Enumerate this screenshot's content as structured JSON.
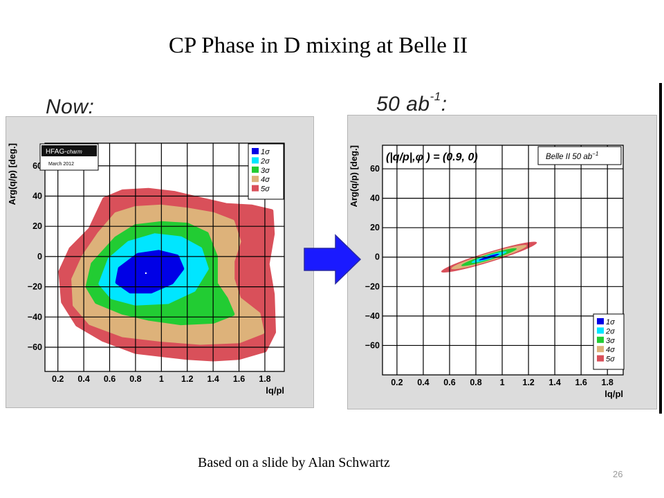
{
  "slide": {
    "title": "CP Phase in D mixing at Belle II",
    "footer": "Based on a slide by Alan Schwartz",
    "page_number": "26"
  },
  "arrow": {
    "color": "#1a1aff"
  },
  "chart_data": [
    {
      "type": "contour",
      "heading": "Now:",
      "xlabel": "lq/pl",
      "ylabel": "Arg(q/p) [deg.]",
      "xlim": [
        0.1,
        1.95
      ],
      "ylim": [
        -76,
        75
      ],
      "xticks": [
        "0.2",
        "0.4",
        "0.6",
        "0.8",
        "1",
        "1.2",
        "1.4",
        "1.6",
        "1.8"
      ],
      "yticks": [
        "60",
        "40",
        "20",
        "0",
        "−20",
        "−40",
        "−60"
      ],
      "grid": true,
      "badge": {
        "line1": "HFAG-",
        "line1_italic": "charm",
        "line2": "March 2012"
      },
      "legend": {
        "placement": "top-right",
        "entries": [
          "1σ",
          "2σ",
          "3σ",
          "4σ",
          "5σ"
        ],
        "colors": [
          "#0000e6",
          "#00e6ff",
          "#22cc33",
          "#ddb27a",
          "#d9505a"
        ]
      },
      "best_fit": {
        "x": 0.88,
        "y": -11
      },
      "contours": [
        {
          "level": "5σ",
          "points": [
            [
              0.56,
              38
            ],
            [
              0.7,
              43
            ],
            [
              0.9,
              44
            ],
            [
              1.1,
              42
            ],
            [
              1.3,
              38
            ],
            [
              1.5,
              34
            ],
            [
              1.7,
              33
            ],
            [
              1.85,
              30
            ],
            [
              1.86,
              15
            ],
            [
              1.82,
              -5
            ],
            [
              1.86,
              -25
            ],
            [
              1.87,
              -50
            ],
            [
              1.8,
              -62
            ],
            [
              1.6,
              -67
            ],
            [
              1.4,
              -68
            ],
            [
              1.2,
              -67
            ],
            [
              1.0,
              -65
            ],
            [
              0.8,
              -63
            ],
            [
              0.55,
              -55
            ],
            [
              0.35,
              -45
            ],
            [
              0.24,
              -30
            ],
            [
              0.22,
              -10
            ],
            [
              0.3,
              5
            ],
            [
              0.45,
              18
            ]
          ]
        },
        {
          "level": "4σ",
          "points": [
            [
              0.65,
              28
            ],
            [
              0.8,
              32
            ],
            [
              1.0,
              33
            ],
            [
              1.2,
              31
            ],
            [
              1.4,
              28
            ],
            [
              1.55,
              23
            ],
            [
              1.6,
              10
            ],
            [
              1.55,
              -3
            ],
            [
              1.55,
              -15
            ],
            [
              1.6,
              -28
            ],
            [
              1.75,
              -38
            ],
            [
              1.78,
              -50
            ],
            [
              1.6,
              -56
            ],
            [
              1.3,
              -57
            ],
            [
              1.0,
              -55
            ],
            [
              0.7,
              -52
            ],
            [
              0.45,
              -44
            ],
            [
              0.33,
              -32
            ],
            [
              0.32,
              -15
            ],
            [
              0.4,
              0
            ],
            [
              0.52,
              15
            ]
          ]
        },
        {
          "level": "3σ",
          "points": [
            [
              0.65,
              12
            ],
            [
              0.8,
              20
            ],
            [
              1.0,
              22
            ],
            [
              1.2,
              21
            ],
            [
              1.35,
              15
            ],
            [
              1.42,
              0
            ],
            [
              1.42,
              -18
            ],
            [
              1.5,
              -28
            ],
            [
              1.55,
              -38
            ],
            [
              1.4,
              -43
            ],
            [
              1.15,
              -44
            ],
            [
              0.9,
              -41
            ],
            [
              0.7,
              -37
            ],
            [
              0.5,
              -30
            ],
            [
              0.43,
              -20
            ],
            [
              0.47,
              -5
            ]
          ]
        },
        {
          "level": "2σ",
          "points": [
            [
              0.6,
              -2
            ],
            [
              0.75,
              9
            ],
            [
              0.95,
              14
            ],
            [
              1.15,
              12
            ],
            [
              1.3,
              5
            ],
            [
              1.35,
              -8
            ],
            [
              1.25,
              -22
            ],
            [
              1.05,
              -30
            ],
            [
              0.8,
              -31
            ],
            [
              0.62,
              -27
            ],
            [
              0.53,
              -18
            ]
          ]
        },
        {
          "level": "1σ",
          "points": [
            [
              0.68,
              -8
            ],
            [
              0.82,
              1
            ],
            [
              0.98,
              3
            ],
            [
              1.12,
              0
            ],
            [
              1.16,
              -8
            ],
            [
              1.08,
              -17
            ],
            [
              0.92,
              -23
            ],
            [
              0.76,
              -23
            ],
            [
              0.66,
              -17
            ]
          ]
        }
      ]
    },
    {
      "type": "contour",
      "heading": "50 ab",
      "heading_sup": "-1",
      "heading_suffix": ":",
      "xlabel": "lq/pl",
      "ylabel": "Arg(q/p) [deg.]",
      "xlim": [
        0.09,
        1.92
      ],
      "ylim": [
        -80,
        76
      ],
      "xticks": [
        "0.2",
        "0.4",
        "0.6",
        "0.8",
        "1",
        "1.2",
        "1.4",
        "1.6",
        "1.8"
      ],
      "yticks": [
        "60",
        "40",
        "20",
        "0",
        "−20",
        "−40",
        "−60"
      ],
      "grid": true,
      "annotation": "(|q/p|,φ ) = (0.9, 0)",
      "badge": {
        "label": "Belle II 50 ab",
        "sup": "−1"
      },
      "legend": {
        "placement": "bottom-right",
        "entries": [
          "1σ",
          "2σ",
          "3σ",
          "4σ",
          "5σ"
        ],
        "colors": [
          "#0000e6",
          "#00e6ff",
          "#22cc33",
          "#ddb27a",
          "#d9505a"
        ]
      },
      "contours": [
        {
          "level": "5σ",
          "cx": 0.9,
          "cy": 0,
          "rx": 0.38,
          "ry": 3.4,
          "angle": 17
        },
        {
          "level": "4σ",
          "cx": 0.9,
          "cy": 0,
          "rx": 0.3,
          "ry": 2.7,
          "angle": 17
        },
        {
          "level": "3σ",
          "cx": 0.9,
          "cy": 0,
          "rx": 0.22,
          "ry": 2.0,
          "angle": 17
        },
        {
          "level": "2σ",
          "cx": 0.9,
          "cy": 0,
          "rx": 0.14,
          "ry": 1.4,
          "angle": 17
        },
        {
          "level": "1σ",
          "cx": 0.9,
          "cy": 0,
          "rx": 0.08,
          "ry": 0.8,
          "angle": 17
        }
      ]
    }
  ]
}
